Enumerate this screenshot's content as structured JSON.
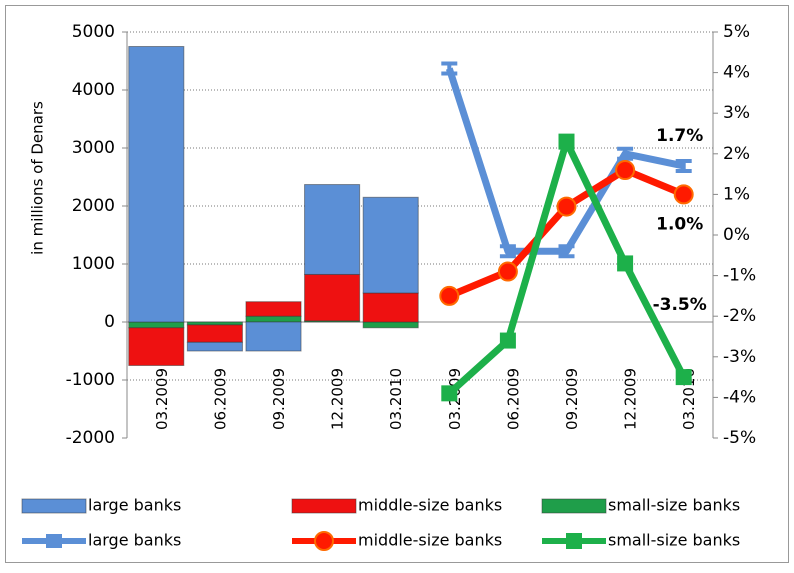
{
  "chart_data": {
    "type": "combo",
    "y_label": "in millions of Denars",
    "categories": [
      "03.2009",
      "06.2009",
      "09.2009",
      "12.2009",
      "03.2010",
      "03.2009",
      "06.2009",
      "09.2009",
      "12.2009",
      "03.2010"
    ],
    "ylim": [
      -2000,
      5000
    ],
    "yticks": [
      -2000,
      -1000,
      0,
      1000,
      2000,
      3000,
      4000,
      5000
    ],
    "y2lim": [
      -5,
      5
    ],
    "y2ticks": [
      {
        "value": -5,
        "label": "-5%"
      },
      {
        "value": -4,
        "label": "-4%"
      },
      {
        "value": -3,
        "label": "-3%"
      },
      {
        "value": -2,
        "label": "-2%"
      },
      {
        "value": -1,
        "label": "-1%"
      },
      {
        "value": 0,
        "label": "0%"
      },
      {
        "value": 1,
        "label": "1%"
      },
      {
        "value": 2,
        "label": "2%"
      },
      {
        "value": 3,
        "label": "3%"
      },
      {
        "value": 4,
        "label": "4%"
      },
      {
        "value": 5,
        "label": "5%"
      }
    ],
    "grid": true,
    "series": [
      {
        "name": "large banks",
        "type": "bar",
        "color": "#5b8fd6",
        "values": [
          4750,
          -150,
          -500,
          1550,
          1650,
          null,
          null,
          null,
          null,
          null
        ]
      },
      {
        "name": "middle-size banks",
        "type": "bar",
        "color": "#ee1111",
        "values": [
          -650,
          -300,
          250,
          800,
          500,
          null,
          null,
          null,
          null,
          null
        ]
      },
      {
        "name": "small-size banks",
        "type": "bar",
        "color": "#1f9e4a",
        "values": [
          -100,
          -50,
          100,
          20,
          -100,
          null,
          null,
          null,
          null,
          null
        ]
      },
      {
        "name": "large banks",
        "type": "line",
        "axis": "y2",
        "color": "#5b8fd6",
        "values": [
          null,
          null,
          null,
          null,
          null,
          4.1,
          -0.4,
          -0.4,
          2.0,
          1.7
        ],
        "value_labels": [
          null,
          null,
          null,
          null,
          null,
          null,
          null,
          null,
          null,
          "1.7%"
        ]
      },
      {
        "name": "middle-size banks",
        "type": "line",
        "axis": "y2",
        "color": "#ff1a00",
        "values": [
          null,
          null,
          null,
          null,
          null,
          -1.5,
          -0.9,
          0.7,
          1.6,
          1.0
        ],
        "value_labels": [
          null,
          null,
          null,
          null,
          null,
          null,
          null,
          null,
          null,
          "1.0%"
        ]
      },
      {
        "name": "small-size banks",
        "type": "line",
        "axis": "y2",
        "color": "#1db04a",
        "values": [
          null,
          null,
          null,
          null,
          null,
          -3.9,
          -2.6,
          2.3,
          -0.7,
          -3.5
        ],
        "value_labels": [
          null,
          null,
          null,
          null,
          null,
          null,
          null,
          null,
          null,
          "-3.5%"
        ]
      }
    ]
  }
}
